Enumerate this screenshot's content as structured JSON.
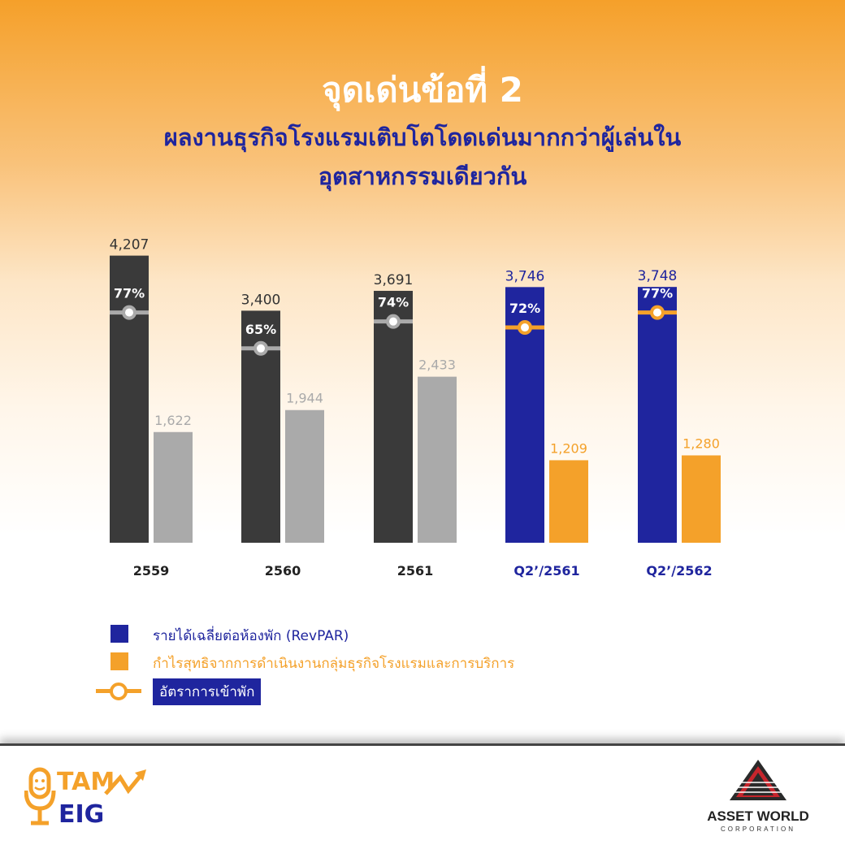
{
  "header": {
    "title": "จุดเด่นข้อที่ 2",
    "subtitle_line1": "ผลงานธุรกิจโรงแรมเติบโตโดดเด่นมากกว่าผู้เล่นใน",
    "subtitle_line2": "อุตสาหกรรมเดียวกัน"
  },
  "colors": {
    "dark_bar": "#3a3a3a",
    "gray_bar": "#aaaaaa",
    "blue_bar": "#1f259e",
    "orange_bar": "#f4a12a",
    "occupancy_gray": "#aaaaaa",
    "occupancy_orange": "#f4a12a"
  },
  "chart_data": {
    "type": "bar",
    "categories": [
      "2559",
      "2560",
      "2561",
      "Q2’/2561",
      "Q2’/2562"
    ],
    "series": [
      {
        "name": "รายได้เฉลี่ยต่อห้องพัก (RevPAR)",
        "values": [
          4207,
          3400,
          3691,
          3746,
          3748
        ],
        "labels": [
          "4,207",
          "3,400",
          "3,691",
          "3,746",
          "3,748"
        ]
      },
      {
        "name": "กำไรสุทธิจากการดำเนินงานกลุ่มธุรกิจโรงแรมและการบริการ",
        "values": [
          1622,
          1944,
          2433,
          1209,
          1280
        ],
        "labels": [
          "1,622",
          "1,944",
          "2,433",
          "1,209",
          "1,280"
        ]
      },
      {
        "name": "อัตราการเข้าพัก",
        "values": [
          77,
          65,
          74,
          72,
          77
        ],
        "labels": [
          "77%",
          "65%",
          "74%",
          "72%",
          "77%"
        ]
      }
    ],
    "ylim": [
      0,
      4500
    ],
    "grid": false,
    "legend_position": "bottom-left"
  },
  "legend": {
    "revpar": "รายได้เฉลี่ยต่อห้องพัก (RevPAR)",
    "profit": "กำไรสุทธิจากการดำเนินงานกลุ่มธุรกิจโรงแรมและการบริการ",
    "occupancy": "อัตราการเข้าพัก"
  },
  "footer": {
    "logo_left_line1": "TAM",
    "logo_left_line2": "EIG",
    "logo_right_name": "ASSET WORLD",
    "logo_right_sub": "CORPORATION"
  }
}
